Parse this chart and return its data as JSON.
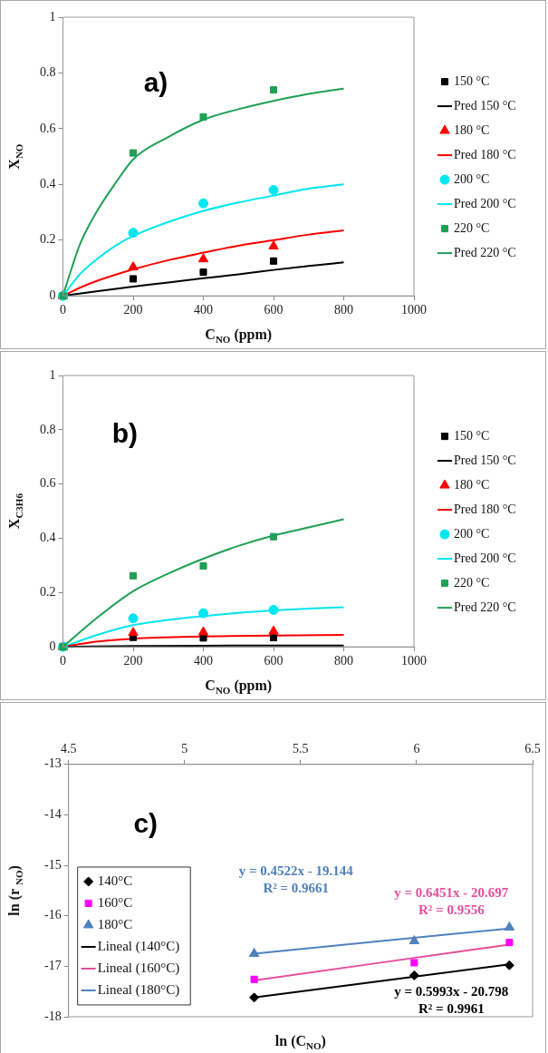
{
  "chart_data": [
    {
      "type": "line",
      "title": "a)",
      "xlabel": "C$_{NO}$ (ppm)",
      "ylabel": "X$_{NO}$",
      "xlim": [
        0,
        1000
      ],
      "xticks": [
        0,
        200,
        400,
        600,
        800,
        1000
      ],
      "ylim": [
        0,
        1
      ],
      "yticks": [
        0,
        0.2,
        0.4,
        0.6,
        0.8,
        1
      ],
      "legend": "right",
      "series": [
        {
          "name": "150 °C",
          "type": "scatter",
          "marker": "square",
          "color": "#000000",
          "x": [
            0,
            200,
            400,
            600
          ],
          "values": [
            0,
            0.061,
            0.085,
            0.125
          ]
        },
        {
          "name": "Pred 150 °C",
          "type": "line",
          "color": "#000000",
          "x": [
            0,
            100,
            200,
            300,
            400,
            500,
            600,
            700,
            800
          ],
          "values": [
            0,
            0.017,
            0.033,
            0.048,
            0.063,
            0.077,
            0.093,
            0.107,
            0.12
          ]
        },
        {
          "name": "180 °C",
          "type": "scatter",
          "marker": "triangle",
          "color": "#ff0000",
          "x": [
            0,
            200,
            400,
            600
          ],
          "values": [
            0,
            0.103,
            0.132,
            0.178
          ]
        },
        {
          "name": "Pred 180 °C",
          "type": "line",
          "color": "#ff0000",
          "x": [
            0,
            50,
            100,
            200,
            300,
            400,
            500,
            600,
            700,
            800
          ],
          "values": [
            0,
            0.03,
            0.055,
            0.095,
            0.128,
            0.155,
            0.18,
            0.2,
            0.22,
            0.235
          ]
        },
        {
          "name": "200 °C",
          "type": "scatter",
          "marker": "circle",
          "color": "#00e6f0",
          "x": [
            0,
            200,
            400,
            600
          ],
          "values": [
            0,
            0.226,
            0.332,
            0.38
          ]
        },
        {
          "name": "Pred 200 °C",
          "type": "line",
          "color": "#00e6f0",
          "x": [
            0,
            50,
            100,
            150,
            200,
            300,
            400,
            500,
            600,
            700,
            800
          ],
          "values": [
            0,
            0.08,
            0.135,
            0.18,
            0.215,
            0.265,
            0.305,
            0.335,
            0.36,
            0.385,
            0.4
          ]
        },
        {
          "name": "220 °C",
          "type": "scatter",
          "marker": "square",
          "color": "#1fa055",
          "x": [
            0,
            200,
            400,
            600
          ],
          "values": [
            0,
            0.513,
            0.642,
            0.739
          ]
        },
        {
          "name": "Pred 220 °C",
          "type": "line",
          "color": "#1fa055",
          "x": [
            0,
            25,
            50,
            100,
            150,
            200,
            300,
            400,
            500,
            600,
            700,
            800
          ],
          "values": [
            0,
            0.1,
            0.19,
            0.31,
            0.405,
            0.49,
            0.57,
            0.632,
            0.67,
            0.7,
            0.725,
            0.744
          ]
        }
      ]
    },
    {
      "type": "line",
      "title": "b)",
      "xlabel": "C$_{NO}$ (ppm)",
      "ylabel": "X$_{C3H6}$",
      "xlim": [
        0,
        1000
      ],
      "xticks": [
        0,
        200,
        400,
        600,
        800,
        1000
      ],
      "ylim": [
        0,
        1
      ],
      "yticks": [
        0,
        0.2,
        0.4,
        0.6,
        0.8,
        1
      ],
      "legend": "right",
      "series": [
        {
          "name": "150 °C",
          "type": "scatter",
          "marker": "square",
          "color": "#000000",
          "x": [
            0,
            200,
            400,
            600
          ],
          "values": [
            0,
            0.035,
            0.033,
            0.034
          ]
        },
        {
          "name": "Pred 150 °C",
          "type": "line",
          "color": "#000000",
          "x": [
            0,
            200,
            400,
            600,
            800
          ],
          "values": [
            0,
            0.003,
            0.004,
            0.005,
            0.005
          ]
        },
        {
          "name": "180 °C",
          "type": "scatter",
          "marker": "triangle",
          "color": "#ff0000",
          "x": [
            0,
            200,
            400,
            600
          ],
          "values": [
            0,
            0.052,
            0.054,
            0.057
          ]
        },
        {
          "name": "Pred 180 °C",
          "type": "line",
          "color": "#ff0000",
          "x": [
            0,
            100,
            200,
            400,
            600,
            800
          ],
          "values": [
            0,
            0.02,
            0.03,
            0.038,
            0.042,
            0.044
          ]
        },
        {
          "name": "200 °C",
          "type": "scatter",
          "marker": "circle",
          "color": "#00e6f0",
          "x": [
            0,
            200,
            400,
            600
          ],
          "values": [
            0,
            0.105,
            0.124,
            0.136
          ]
        },
        {
          "name": "Pred 200 °C",
          "type": "line",
          "color": "#00e6f0",
          "x": [
            0,
            100,
            200,
            300,
            400,
            500,
            600,
            700,
            800
          ],
          "values": [
            0,
            0.045,
            0.08,
            0.099,
            0.113,
            0.125,
            0.134,
            0.141,
            0.146
          ]
        },
        {
          "name": "220 °C",
          "type": "scatter",
          "marker": "square",
          "color": "#1fa055",
          "x": [
            0,
            200,
            400,
            600
          ],
          "values": [
            0,
            0.262,
            0.298,
            0.406
          ]
        },
        {
          "name": "Pred 220 °C",
          "type": "line",
          "color": "#1fa055",
          "x": [
            0,
            100,
            200,
            300,
            400,
            500,
            600,
            700,
            800
          ],
          "values": [
            0,
            0.11,
            0.205,
            0.27,
            0.325,
            0.372,
            0.41,
            0.44,
            0.47
          ]
        }
      ]
    },
    {
      "type": "line",
      "title": "c)",
      "xlabel": "ln (C$_{NO}$)",
      "ylabel": "ln (r $_{NO}$)",
      "xlim": [
        4.5,
        6.5
      ],
      "xticks": [
        4.5,
        5,
        5.5,
        6,
        6.5
      ],
      "ylim": [
        -18,
        -13
      ],
      "yticks": [
        -18,
        -17,
        -16,
        -15,
        -14,
        -13
      ],
      "legend": "left",
      "series": [
        {
          "name": "140°C",
          "type": "scatter",
          "marker": "diamond",
          "color": "#000000",
          "x": [
            5.3,
            5.99,
            6.4
          ],
          "values": [
            -17.62,
            -17.18,
            -16.98
          ]
        },
        {
          "name": "160°C",
          "type": "scatter",
          "marker": "square",
          "color": "#ff00ff",
          "x": [
            5.3,
            5.99,
            6.4
          ],
          "values": [
            -17.26,
            -16.93,
            -16.53
          ]
        },
        {
          "name": "180°C",
          "type": "scatter",
          "marker": "triangle",
          "color": "#4f81bd",
          "x": [
            5.3,
            5.99,
            6.4
          ],
          "values": [
            -16.75,
            -16.5,
            -16.23
          ]
        },
        {
          "name": "Lineal (140°C)",
          "type": "line",
          "color": "#000000",
          "x": [
            5.3,
            6.4
          ],
          "values": [
            -17.62,
            -16.96
          ]
        },
        {
          "name": "Lineal (160°C)",
          "type": "line",
          "color": "#e64d9c",
          "x": [
            5.3,
            6.4
          ],
          "values": [
            -17.28,
            -16.57
          ]
        },
        {
          "name": "Lineal (180°C)",
          "type": "line",
          "color": "#4f81bd",
          "x": [
            5.3,
            6.4
          ],
          "values": [
            -16.75,
            -16.25
          ]
        }
      ],
      "annotations": [
        "y = 0.5993x - 20.798\nR² = 0.9961",
        "y = 0.6451x - 20.697\nR² = 0.9556",
        "y = 0.4522x - 19.144\nR² = 0.9661"
      ]
    }
  ]
}
